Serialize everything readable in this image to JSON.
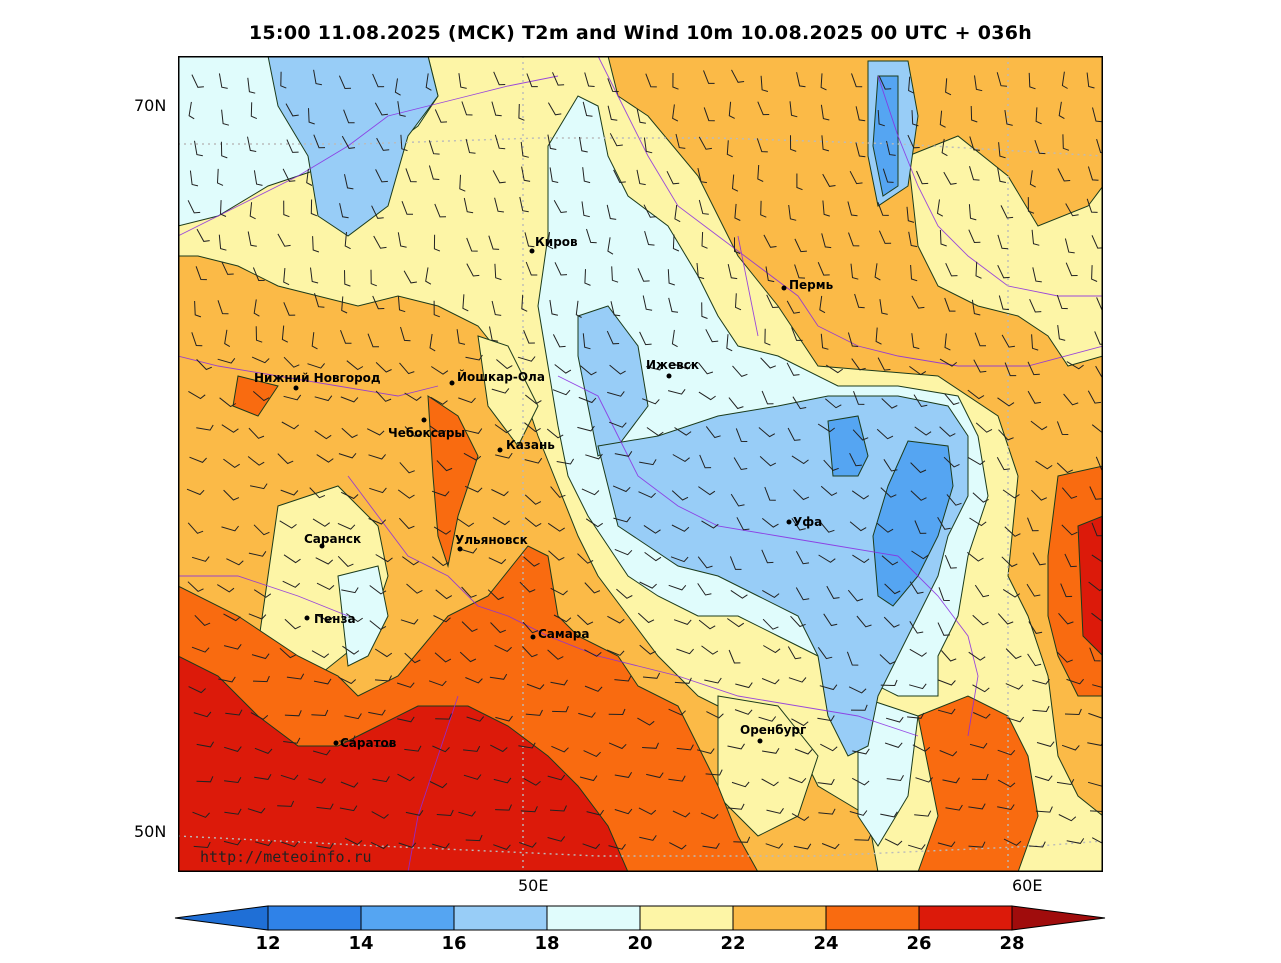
{
  "title": "15:00 11.08.2025 (МСК) T2m and Wind 10m 10.08.2025 00 UTC + 036h",
  "lat_labels": [
    "70N",
    "50N"
  ],
  "lon_labels": [
    "50E",
    "60E"
  ],
  "watermark": "http://meteoinfo.ru",
  "cities": [
    {
      "name": "Киров"
    },
    {
      "name": "Пермь"
    },
    {
      "name": "Ижевск"
    },
    {
      "name": "Нижний Новгород"
    },
    {
      "name": "Йошкар-Ола"
    },
    {
      "name": "Чебоксары"
    },
    {
      "name": "Казань"
    },
    {
      "name": "Уфа"
    },
    {
      "name": "Саранск"
    },
    {
      "name": "Ульяновск"
    },
    {
      "name": "Пенза"
    },
    {
      "name": "Самара"
    },
    {
      "name": "Оренбург"
    },
    {
      "name": "Саратов"
    }
  ],
  "colorbar": {
    "ticks": [
      "12",
      "14",
      "16",
      "18",
      "20",
      "22",
      "24",
      "26",
      "28"
    ],
    "colors": [
      "#1f6fd6",
      "#2f82e8",
      "#55a5f2",
      "#98cdf7",
      "#e0fcfc",
      "#fdf5a6",
      "#fbba47",
      "#f96b10",
      "#dc1a0a",
      "#a00c0c"
    ]
  },
  "palette": {
    "c12_14": "#2f82e8",
    "c14_16": "#55a5f2",
    "c16_18": "#98cdf7",
    "c18_20": "#e0fcfc",
    "c20_22": "#fdf5a6",
    "c22_24": "#fbba47",
    "c24_26": "#f96b10",
    "c26_28": "#dc1a0a",
    "border": "#8a2be2"
  }
}
